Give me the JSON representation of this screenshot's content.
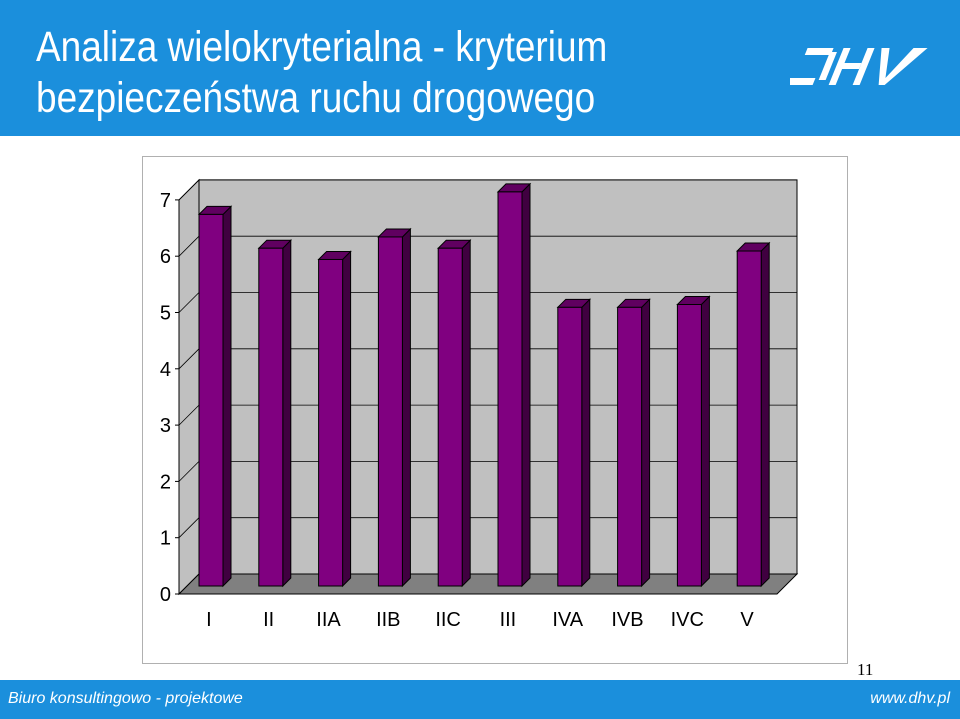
{
  "header": {
    "title_line1": "Analiza wielokryterialna  - kryterium",
    "title_line2": "bezpieczeństwa ruchu drogowego",
    "logo": "DHV",
    "colors": {
      "header_bg": "#1b8fdc",
      "bar": "#800080"
    }
  },
  "footer": {
    "left_text": "Biuro konsultingowo - projektowe",
    "right_text": "www.dhv.pl"
  },
  "page_number": "11",
  "chart_data": {
    "type": "bar",
    "categories": [
      "I",
      "II",
      "IIA",
      "IIB",
      "IIC",
      "III",
      "IVA",
      "IVB",
      "IVC",
      "V"
    ],
    "values": [
      6.6,
      6.0,
      5.8,
      6.2,
      6.0,
      7.0,
      4.95,
      4.95,
      5.0,
      5.95
    ],
    "title": "",
    "xlabel": "",
    "ylabel": "",
    "ylim": [
      0,
      7
    ],
    "yticks": [
      "0",
      "1",
      "2",
      "3",
      "4",
      "5",
      "6",
      "7"
    ],
    "grid": true,
    "legend": "none",
    "style": "3d"
  }
}
